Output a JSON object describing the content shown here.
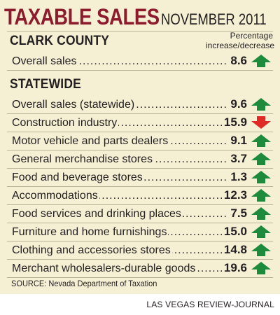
{
  "chart_data": {
    "type": "table",
    "title": "TAXABLE SALES",
    "subtitle": "NOVEMBER 2011",
    "value_header": "Percentage increase/decrease",
    "sections": [
      {
        "name": "CLARK COUNTY",
        "rows": [
          {
            "label": "Overall sales",
            "value": "8.6",
            "direction": "up"
          }
        ]
      },
      {
        "name": "STATEWIDE",
        "rows": [
          {
            "label": "Overall sales (statewide)",
            "value": "9.6",
            "direction": "up"
          },
          {
            "label": "Construction industry",
            "value": "15.9",
            "direction": "down"
          },
          {
            "label": "Motor vehicle and parts dealers",
            "value": "9.1",
            "direction": "up"
          },
          {
            "label": "General merchandise stores",
            "value": "3.7",
            "direction": "up"
          },
          {
            "label": "Food and beverage stores",
            "value": "1.3",
            "direction": "up"
          },
          {
            "label": "Accommodations",
            "value": "12.3",
            "direction": "up"
          },
          {
            "label": "Food services and drinking places",
            "value": "7.5",
            "direction": "up"
          },
          {
            "label": "Furniture and home furnishings",
            "value": "15.0",
            "direction": "up"
          },
          {
            "label": "Clothing and accessories stores",
            "value": "14.8",
            "direction": "up"
          },
          {
            "label": "Merchant wholesalers-durable goods",
            "value": "19.6",
            "direction": "up"
          }
        ]
      }
    ],
    "source": "SOURCE: Nevada Department of Taxation"
  },
  "credit": "LAS VEGAS REVIEW-JOURNAL",
  "colors": {
    "background": "#f5f0d4",
    "title": "#8d1b2c",
    "up_arrow": "#1e8a3c",
    "down_arrow": "#e02a26"
  },
  "icons": {
    "up": "arrow-up-icon",
    "down": "arrow-down-icon"
  }
}
